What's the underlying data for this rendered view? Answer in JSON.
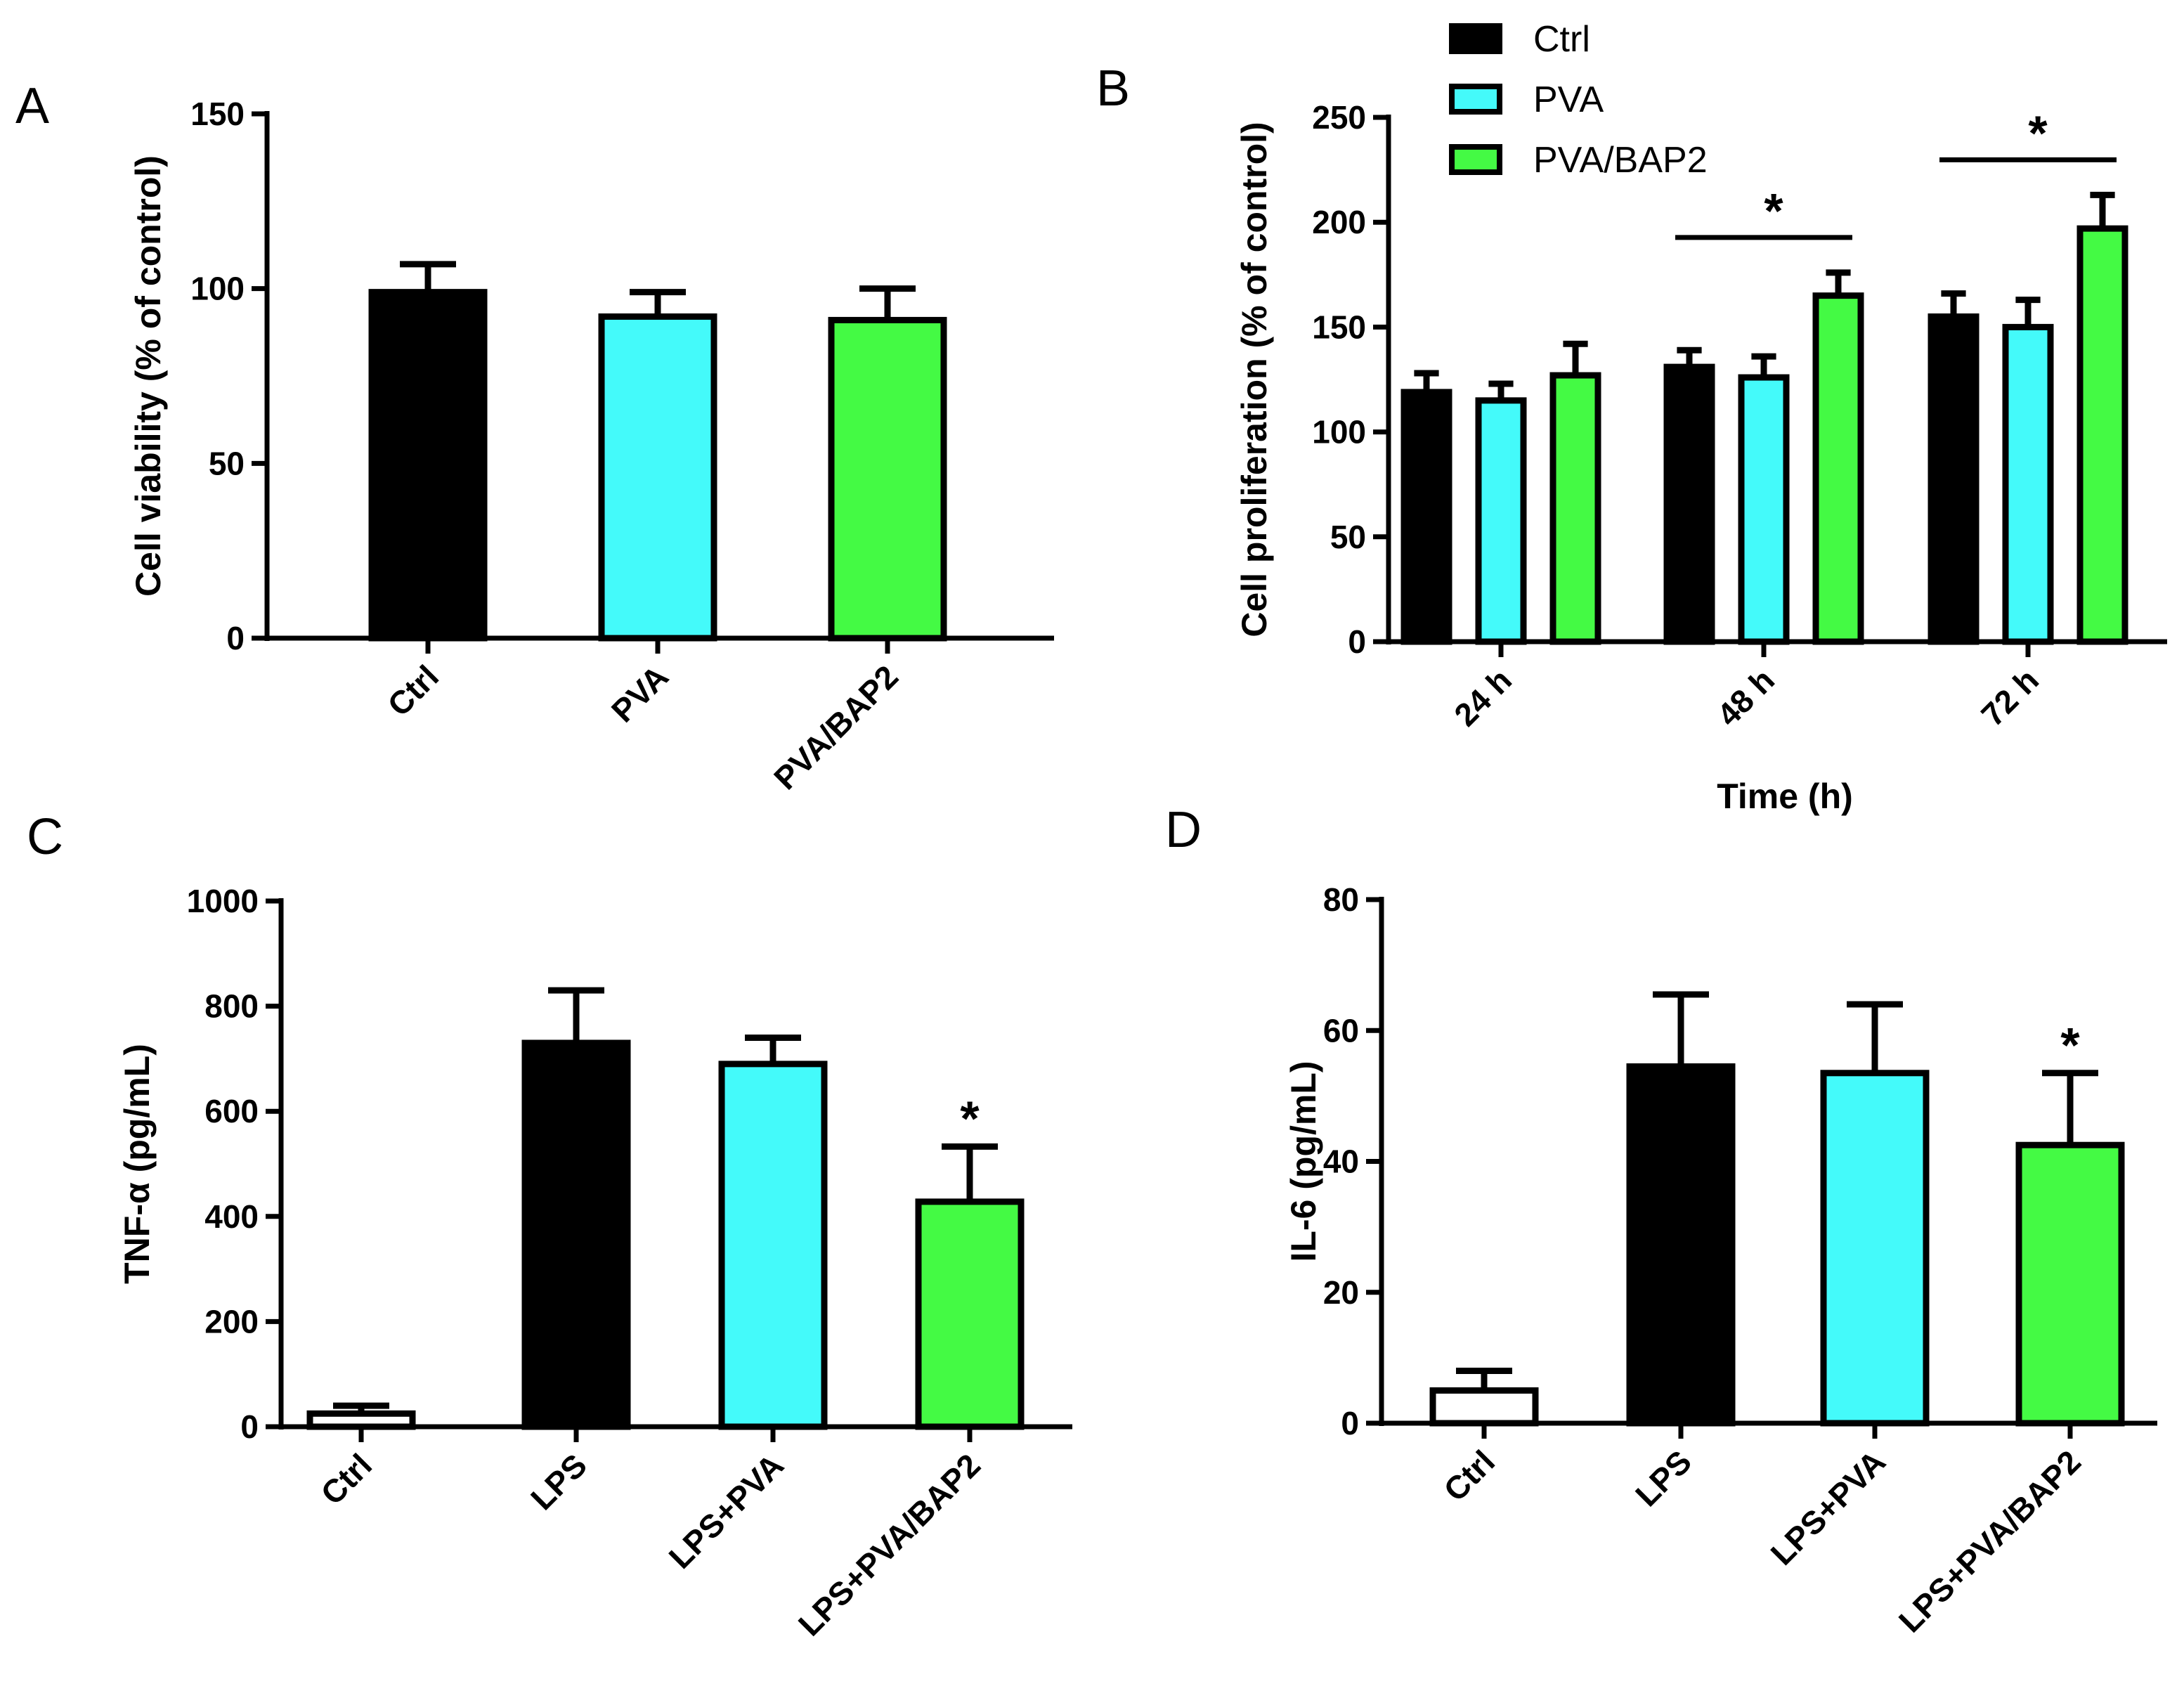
{
  "legend": [
    {
      "name": "Ctrl",
      "color": "#000000"
    },
    {
      "name": "PVA",
      "color": "#44FAFA"
    },
    {
      "name": "PVA/BAP2",
      "color": "#44FA44"
    }
  ],
  "chart_data": [
    {
      "panel": "A",
      "type": "bar",
      "categories": [
        "Ctrl",
        "PVA",
        "PVA/BAP2"
      ],
      "values": [
        99,
        92,
        91
      ],
      "errors": [
        8,
        7,
        9
      ],
      "colors": [
        "#000000",
        "#44FAFA",
        "#44FA44"
      ],
      "ylabel": "Cell viability (% of control)",
      "xlabel": "",
      "ylim": [
        0,
        150
      ],
      "yticks": [
        0,
        50,
        100,
        150
      ],
      "significance": []
    },
    {
      "panel": "B",
      "type": "bar",
      "categories": [
        "24 h",
        "48 h",
        "72 h"
      ],
      "series": [
        {
          "name": "Ctrl",
          "color": "#000000",
          "values": [
            119,
            131,
            155
          ],
          "errors": [
            9,
            8,
            11
          ]
        },
        {
          "name": "PVA",
          "color": "#44FAFA",
          "values": [
            115,
            126,
            150
          ],
          "errors": [
            8,
            10,
            13
          ]
        },
        {
          "name": "PVA/BAP2",
          "color": "#44FA44",
          "values": [
            127,
            165,
            197
          ],
          "errors": [
            15,
            11,
            16
          ]
        }
      ],
      "ylabel": "Cell proliferation (% of control)",
      "xlabel": "Time (h)",
      "ylim": [
        0,
        250
      ],
      "yticks": [
        0,
        50,
        100,
        150,
        200,
        250
      ],
      "significance": [
        {
          "label": "*",
          "category": "48 h"
        },
        {
          "label": "*",
          "category": "72 h"
        }
      ]
    },
    {
      "panel": "C",
      "type": "bar",
      "categories": [
        "Ctrl",
        "LPS",
        "LPS+PVA",
        "LPS+PVA/BAP2"
      ],
      "values": [
        25,
        730,
        690,
        428
      ],
      "errors": [
        15,
        100,
        50,
        105
      ],
      "colors": [
        "#FFFFFF",
        "#000000",
        "#44FAFA",
        "#44FA44"
      ],
      "ylabel": "TNF-α (pg/mL)",
      "xlabel": "",
      "ylim": [
        0,
        1000
      ],
      "yticks": [
        0,
        200,
        400,
        600,
        800,
        1000
      ],
      "significance": [
        {
          "label": "*",
          "category": "LPS+PVA/BAP2"
        }
      ]
    },
    {
      "panel": "D",
      "type": "bar",
      "categories": [
        "Ctrl",
        "LPS",
        "LPS+PVA",
        "LPS+PVA/BAP2"
      ],
      "values": [
        5,
        54.5,
        53.5,
        42.5
      ],
      "errors": [
        3,
        11,
        10.5,
        11
      ],
      "colors": [
        "#FFFFFF",
        "#000000",
        "#44FAFA",
        "#44FA44"
      ],
      "ylabel": "IL-6 (pg/mL)",
      "xlabel": "",
      "ylim": [
        0,
        80
      ],
      "yticks": [
        0,
        20,
        40,
        60,
        80
      ],
      "significance": [
        {
          "label": "*",
          "category": "LPS+PVA/BAP2"
        }
      ]
    }
  ]
}
